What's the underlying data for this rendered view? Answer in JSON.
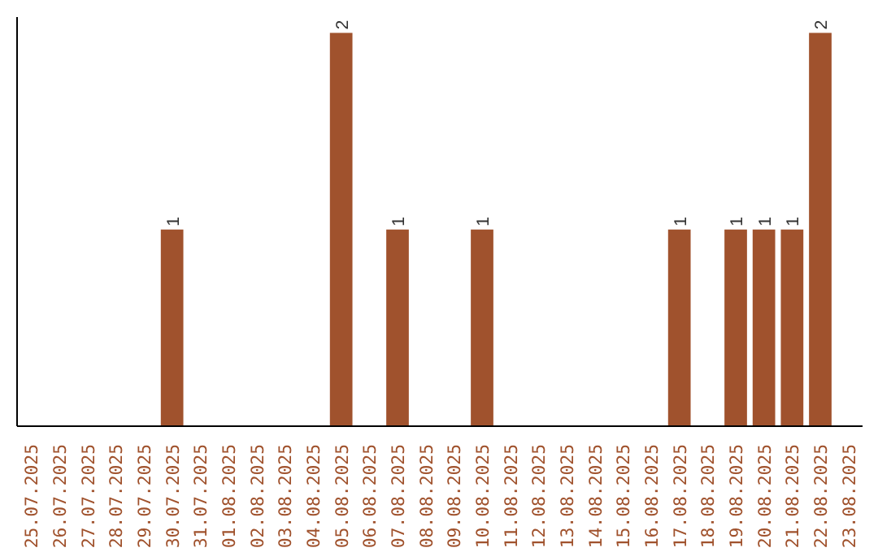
{
  "chart_data": {
    "type": "bar",
    "categories": [
      "25.07.2025",
      "26.07.2025",
      "27.07.2025",
      "28.07.2025",
      "29.07.2025",
      "30.07.2025",
      "31.07.2025",
      "01.08.2025",
      "02.08.2025",
      "03.08.2025",
      "04.08.2025",
      "05.08.2025",
      "06.08.2025",
      "07.08.2025",
      "08.08.2025",
      "09.08.2025",
      "10.08.2025",
      "11.08.2025",
      "12.08.2025",
      "13.08.2025",
      "14.08.2025",
      "15.08.2025",
      "16.08.2025",
      "17.08.2025",
      "18.08.2025",
      "19.08.2025",
      "20.08.2025",
      "21.08.2025",
      "22.08.2025",
      "23.08.2025"
    ],
    "values": [
      0,
      0,
      0,
      0,
      0,
      1,
      0,
      0,
      0,
      0,
      0,
      2,
      0,
      1,
      0,
      0,
      1,
      0,
      0,
      0,
      0,
      0,
      0,
      1,
      0,
      1,
      1,
      1,
      2,
      0
    ],
    "value_labels": [
      null,
      null,
      null,
      null,
      null,
      "1",
      null,
      null,
      null,
      null,
      null,
      "2",
      null,
      "1",
      null,
      null,
      "1",
      null,
      null,
      null,
      null,
      null,
      null,
      "1",
      null,
      "1",
      "1",
      "1",
      "2",
      null
    ],
    "color": "#a0522d"
  }
}
